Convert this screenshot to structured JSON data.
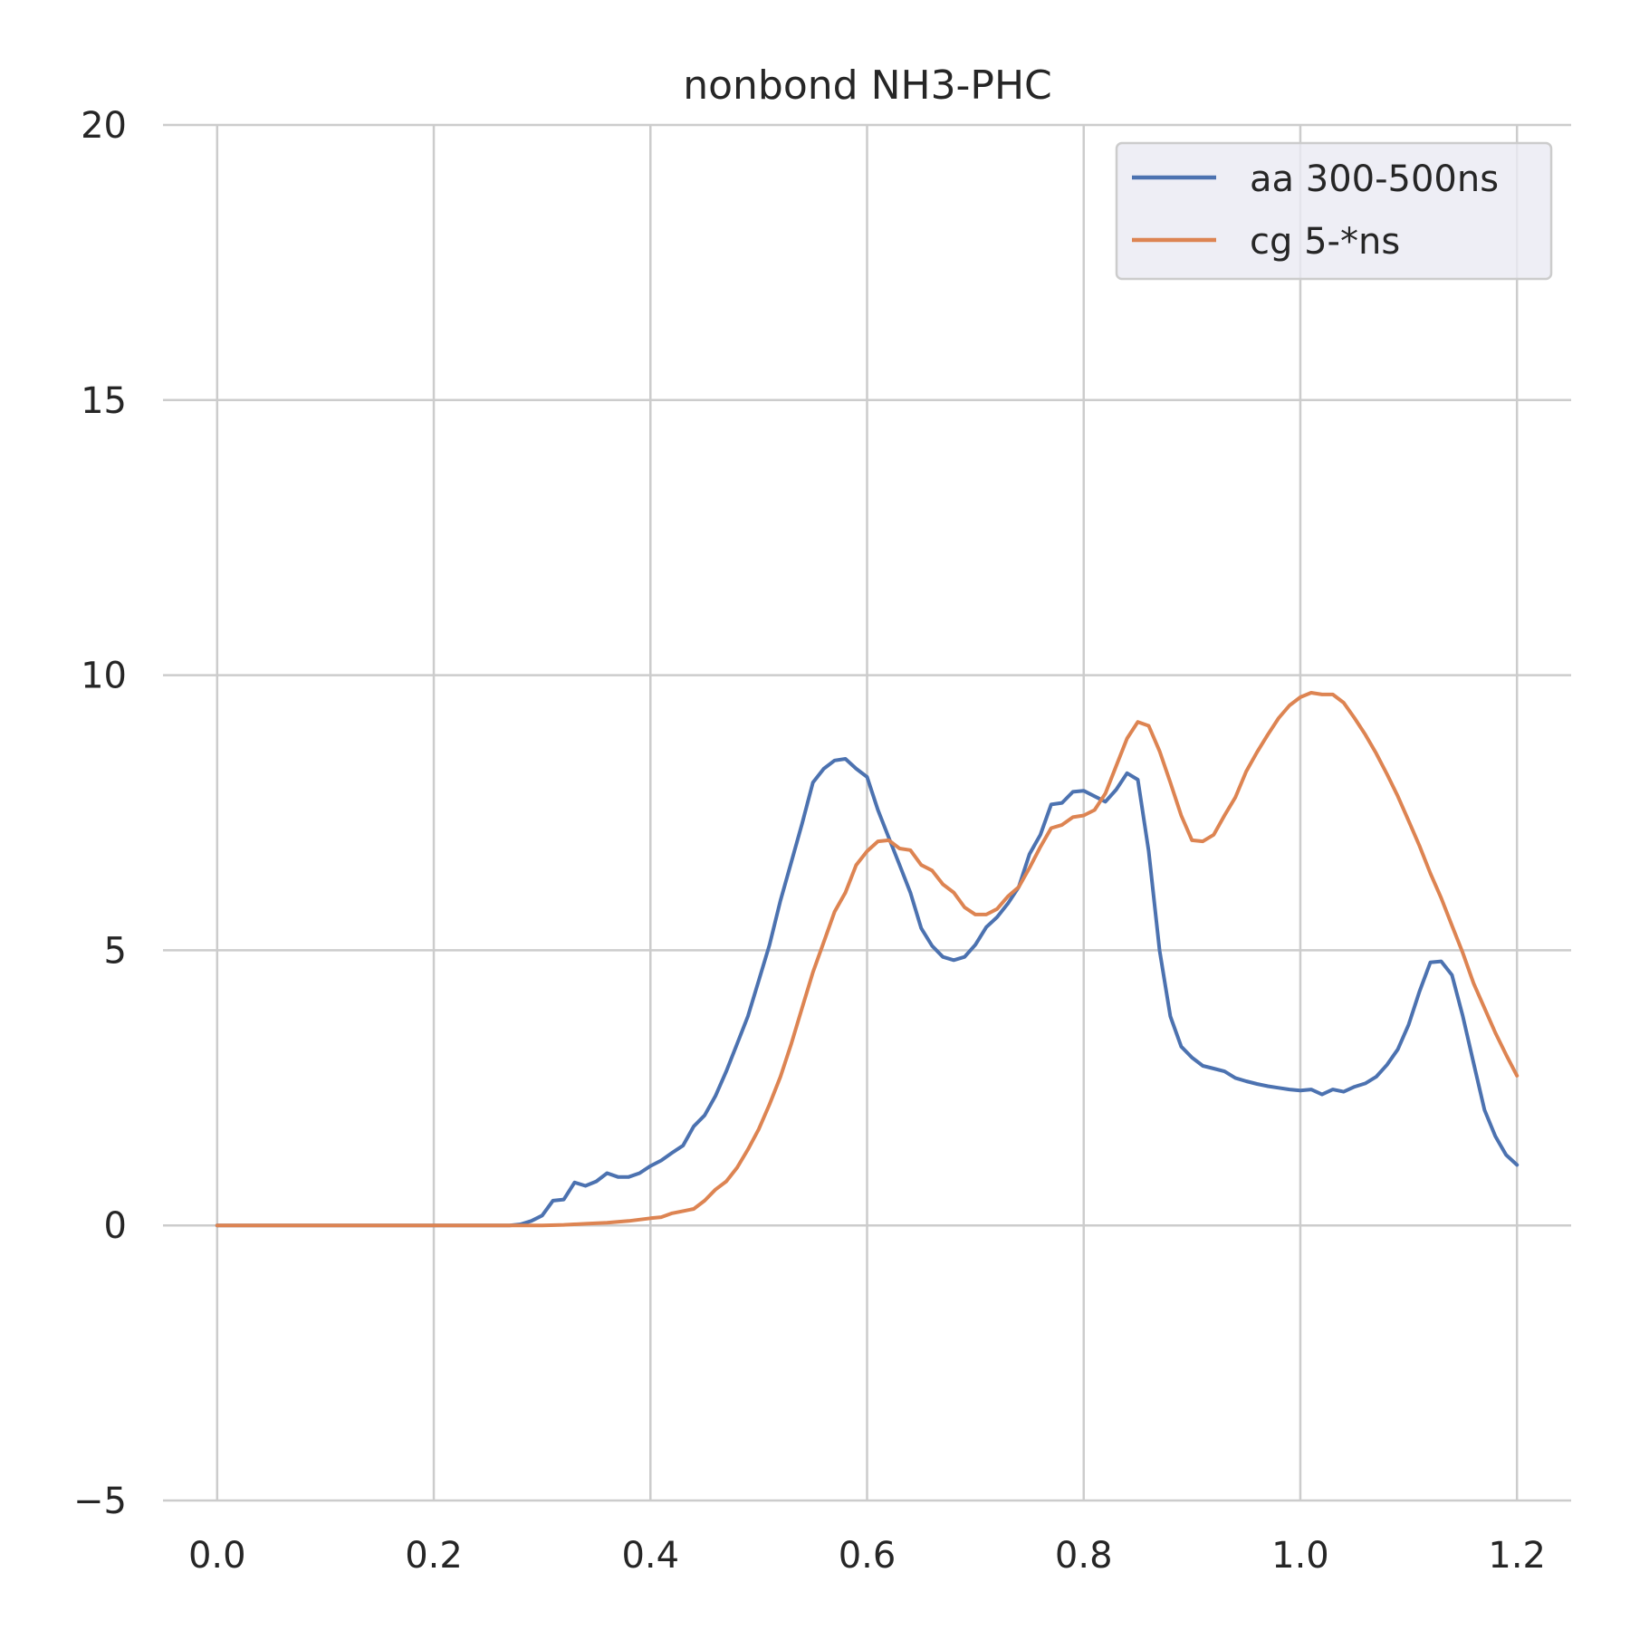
{
  "chart_data": {
    "type": "line",
    "title": "nonbond NH3-PHC",
    "xlabel": "",
    "ylabel": "",
    "xlim": [
      -0.05,
      1.25
    ],
    "ylim": [
      -5,
      20
    ],
    "xticks": [
      0.0,
      0.2,
      0.4,
      0.6,
      0.8,
      1.0,
      1.2
    ],
    "xtick_labels": [
      "0.0",
      "0.2",
      "0.4",
      "0.6",
      "0.8",
      "1.0",
      "1.2"
    ],
    "yticks": [
      -5,
      0,
      5,
      10,
      15,
      20
    ],
    "ytick_labels": [
      "−5",
      "0",
      "5",
      "10",
      "15",
      "20"
    ],
    "grid": true,
    "legend_position": "top-right",
    "series": [
      {
        "name": "aa 300-500ns",
        "color": "#4c72b0",
        "x": [
          0,
          0.27,
          0.28,
          0.29,
          0.3,
          0.31,
          0.32,
          0.33,
          0.34,
          0.35,
          0.36,
          0.37,
          0.38,
          0.39,
          0.4,
          0.41,
          0.42,
          0.43,
          0.44,
          0.45,
          0.46,
          0.47,
          0.48,
          0.49,
          0.5,
          0.51,
          0.52,
          0.53,
          0.54,
          0.55,
          0.56,
          0.57,
          0.58,
          0.59,
          0.6,
          0.61,
          0.62,
          0.63,
          0.64,
          0.65,
          0.66,
          0.67,
          0.68,
          0.69,
          0.7,
          0.71,
          0.72,
          0.73,
          0.74,
          0.75,
          0.76,
          0.77,
          0.78,
          0.79,
          0.8,
          0.81,
          0.82,
          0.83,
          0.84,
          0.85,
          0.86,
          0.87,
          0.88,
          0.89,
          0.9,
          0.91,
          0.92,
          0.93,
          0.94,
          0.95,
          0.96,
          0.97,
          0.98,
          0.99,
          1.0,
          1.01,
          1.02,
          1.03,
          1.04,
          1.05,
          1.06,
          1.07,
          1.08,
          1.09,
          1.1,
          1.11,
          1.12,
          1.13,
          1.14,
          1.15,
          1.16,
          1.17,
          1.18,
          1.19,
          1.2
        ],
        "y": [
          0,
          0,
          0.02,
          0.08,
          0.18,
          0.45,
          0.47,
          0.78,
          0.72,
          0.8,
          0.95,
          0.88,
          0.88,
          0.95,
          1.08,
          1.18,
          1.32,
          1.45,
          1.8,
          2.0,
          2.35,
          2.8,
          3.3,
          3.8,
          4.45,
          5.1,
          5.9,
          6.6,
          7.3,
          8.05,
          8.3,
          8.45,
          8.48,
          8.3,
          8.15,
          7.55,
          7.05,
          6.55,
          6.05,
          5.4,
          5.08,
          4.88,
          4.82,
          4.88,
          5.1,
          5.42,
          5.6,
          5.85,
          6.15,
          6.75,
          7.1,
          7.65,
          7.68,
          7.88,
          7.9,
          7.8,
          7.7,
          7.92,
          8.22,
          8.1,
          6.8,
          5.0,
          3.8,
          3.25,
          3.05,
          2.9,
          2.85,
          2.8,
          2.68,
          2.62,
          2.57,
          2.53,
          2.5,
          2.47,
          2.45,
          2.47,
          2.38,
          2.47,
          2.43,
          2.52,
          2.58,
          2.7,
          2.92,
          3.2,
          3.65,
          4.25,
          4.78,
          4.8,
          4.55,
          3.8,
          2.95,
          2.1,
          1.62,
          1.28,
          1.1
        ]
      },
      {
        "name": "cg 5-*ns",
        "color": "#dd8452",
        "x": [
          0,
          0.3,
          0.32,
          0.34,
          0.36,
          0.38,
          0.4,
          0.41,
          0.42,
          0.43,
          0.44,
          0.45,
          0.46,
          0.47,
          0.48,
          0.49,
          0.5,
          0.51,
          0.52,
          0.53,
          0.54,
          0.55,
          0.56,
          0.57,
          0.58,
          0.59,
          0.6,
          0.61,
          0.62,
          0.63,
          0.64,
          0.65,
          0.66,
          0.67,
          0.68,
          0.69,
          0.7,
          0.71,
          0.72,
          0.73,
          0.74,
          0.75,
          0.76,
          0.77,
          0.78,
          0.79,
          0.8,
          0.81,
          0.82,
          0.83,
          0.84,
          0.85,
          0.86,
          0.87,
          0.88,
          0.89,
          0.9,
          0.91,
          0.92,
          0.93,
          0.94,
          0.95,
          0.96,
          0.97,
          0.98,
          0.99,
          1.0,
          1.01,
          1.02,
          1.03,
          1.04,
          1.05,
          1.06,
          1.07,
          1.08,
          1.09,
          1.1,
          1.11,
          1.12,
          1.13,
          1.14,
          1.15,
          1.16,
          1.17,
          1.18,
          1.19,
          1.2
        ],
        "y": [
          0,
          0,
          0.01,
          0.03,
          0.05,
          0.08,
          0.13,
          0.15,
          0.22,
          0.26,
          0.3,
          0.45,
          0.65,
          0.8,
          1.05,
          1.38,
          1.75,
          2.2,
          2.7,
          3.3,
          3.95,
          4.6,
          5.15,
          5.7,
          6.05,
          6.55,
          6.8,
          6.98,
          7.0,
          6.85,
          6.82,
          6.55,
          6.45,
          6.2,
          6.05,
          5.78,
          5.65,
          5.65,
          5.75,
          5.98,
          6.15,
          6.5,
          6.88,
          7.22,
          7.28,
          7.42,
          7.45,
          7.55,
          7.85,
          8.35,
          8.85,
          9.15,
          9.08,
          8.62,
          8.05,
          7.45,
          7.0,
          6.98,
          7.1,
          7.45,
          7.78,
          8.25,
          8.6,
          8.92,
          9.22,
          9.45,
          9.6,
          9.68,
          9.65,
          9.65,
          9.5,
          9.22,
          8.92,
          8.58,
          8.2,
          7.8,
          7.35,
          6.9,
          6.4,
          5.95,
          5.45,
          4.95,
          4.4,
          3.95,
          3.5,
          3.1,
          2.72
        ]
      }
    ]
  }
}
